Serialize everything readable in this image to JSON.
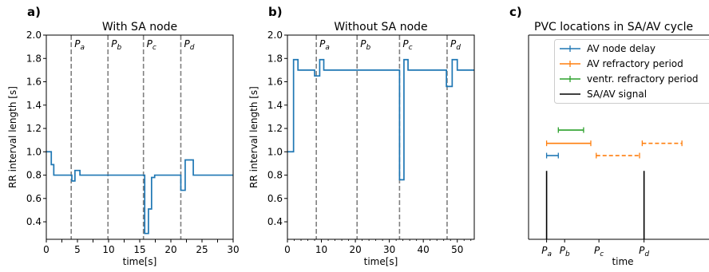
{
  "chart_data": [
    {
      "type": "line",
      "panel_label": "a)",
      "title": "With SA node",
      "xlabel": "time[s]",
      "ylabel": "RR interval length [s]",
      "xlim": [
        0,
        30
      ],
      "ylim": [
        0.25,
        2.0
      ],
      "xticks": [
        "0",
        "2.5",
        "5",
        "7.5",
        "10",
        "12.5",
        "15",
        "17.5",
        "20",
        "22.5",
        "25",
        "27.5",
        "30"
      ],
      "xtick_values": [
        0,
        2.5,
        5,
        7.5,
        10,
        12.5,
        15,
        17.5,
        20,
        22.5,
        25,
        27.5,
        30
      ],
      "yticks": [
        "0.4",
        "0.6",
        "0.8",
        "1.0",
        "1.2",
        "1.4",
        "1.6",
        "1.8",
        "2.0"
      ],
      "ytick_values": [
        0.4,
        0.6,
        0.8,
        1.0,
        1.2,
        1.4,
        1.6,
        1.8,
        2.0
      ],
      "series": [
        {
          "color": "#1f77b4",
          "step": "post",
          "x": [
            0,
            0.8,
            1.2,
            4.1,
            4.6,
            5.4,
            15.8,
            16.4,
            16.9,
            17.4,
            21.6,
            22.3,
            23.6,
            30
          ],
          "y": [
            1.0,
            0.89,
            0.8,
            0.75,
            0.84,
            0.8,
            0.3,
            0.51,
            0.78,
            0.8,
            0.67,
            0.93,
            0.8,
            0.8
          ]
        }
      ],
      "vlines": [
        {
          "x": 4.0,
          "label": "P",
          "sub": "a"
        },
        {
          "x": 9.9,
          "label": "P",
          "sub": "b"
        },
        {
          "x": 15.6,
          "label": "P",
          "sub": "c"
        },
        {
          "x": 21.6,
          "label": "P",
          "sub": "d"
        }
      ],
      "vline_color": "#808080"
    },
    {
      "type": "line",
      "panel_label": "b)",
      "title": "Without SA node",
      "xlabel": "time[s]",
      "ylabel": "RR interval length [s]",
      "xlim": [
        0,
        55
      ],
      "ylim": [
        0.25,
        2.0
      ],
      "xticks": [
        "0",
        "10",
        "20",
        "30",
        "40",
        "50"
      ],
      "xtick_values": [
        0,
        10,
        20,
        30,
        40,
        50
      ],
      "minor_xticks": [
        2,
        4,
        6,
        8,
        12,
        14,
        16,
        18,
        22,
        24,
        26,
        28,
        32,
        34,
        36,
        38,
        42,
        44,
        46,
        48,
        52,
        54
      ],
      "yticks": [
        "0.4",
        "0.6",
        "0.8",
        "1.0",
        "1.2",
        "1.4",
        "1.6",
        "1.8",
        "2.0"
      ],
      "ytick_values": [
        0.4,
        0.6,
        0.8,
        1.0,
        1.2,
        1.4,
        1.6,
        1.8,
        2.0
      ],
      "series": [
        {
          "color": "#1f77b4",
          "step": "post",
          "x": [
            0,
            1.8,
            3.1,
            4.0,
            8.0,
            9.5,
            10.7,
            12.0,
            33.0,
            34.3,
            35.5,
            36.6,
            46.8,
            48.5,
            50.0,
            55
          ],
          "y": [
            1.0,
            1.79,
            1.7,
            1.7,
            1.65,
            1.79,
            1.7,
            1.7,
            0.76,
            1.79,
            1.7,
            1.7,
            1.56,
            1.79,
            1.7,
            1.7
          ]
        }
      ],
      "vlines": [
        {
          "x": 8.5,
          "label": "P",
          "sub": "a"
        },
        {
          "x": 20.5,
          "label": "P",
          "sub": "b"
        },
        {
          "x": 33.0,
          "label": "P",
          "sub": "c"
        },
        {
          "x": 47.0,
          "label": "P",
          "sub": "d"
        }
      ],
      "vline_color": "#808080"
    },
    {
      "type": "timeline",
      "panel_label": "c)",
      "title": "PVC locations in SA/AV cycle",
      "xlabel": "time",
      "xticks": [
        {
          "label": "P",
          "sub": "a",
          "x": 0.1
        },
        {
          "label": "P",
          "sub": "b",
          "x": 0.2
        },
        {
          "label": "P",
          "sub": "c",
          "x": 0.39
        },
        {
          "label": "P",
          "sub": "d",
          "x": 0.64
        }
      ],
      "xlim": [
        0,
        1
      ],
      "ylim": [
        0,
        1
      ],
      "legend_position": "top-right",
      "legend": [
        {
          "label": "AV node delay",
          "color": "#1f77b4",
          "style": "errorbar"
        },
        {
          "label": "AV refractory period",
          "color": "#ff7f0e",
          "style": "errorbar"
        },
        {
          "label": "ventr. refractory period",
          "color": "#2ca02c",
          "style": "errorbar"
        },
        {
          "label": "SA/AV signal",
          "color": "#000000",
          "style": "line"
        }
      ],
      "intervals": [
        {
          "series": "AV node delay",
          "x0": 0.1,
          "x1": 0.165,
          "y": 0.41,
          "dashed": false
        },
        {
          "series": "AV refractory period",
          "x0": 0.1,
          "x1": 0.345,
          "y": 0.47,
          "dashed": false
        },
        {
          "series": "ventr. refractory period",
          "x0": 0.165,
          "x1": 0.305,
          "y": 0.535,
          "dashed": false
        },
        {
          "series": "AV refractory period",
          "x0": 0.375,
          "x1": 0.615,
          "y": 0.41,
          "dashed": true
        },
        {
          "series": "AV refractory period",
          "x0": 0.63,
          "x1": 0.85,
          "y": 0.47,
          "dashed": true
        }
      ],
      "signals": [
        {
          "x": 0.1,
          "y0": 0,
          "y1": 0.335
        },
        {
          "x": 0.64,
          "y0": 0,
          "y1": 0.335
        }
      ]
    }
  ]
}
